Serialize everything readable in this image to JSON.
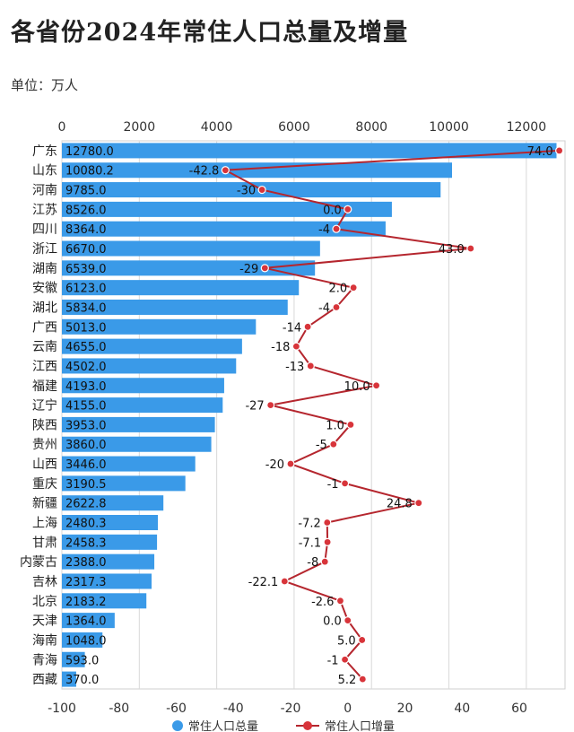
{
  "chart_data": {
    "type": "bar+line",
    "title": "各省份2024年常住人口总量及增量",
    "unit_label": "单位：万人",
    "categories": [
      "广东",
      "山东",
      "河南",
      "江苏",
      "四川",
      "浙江",
      "湖南",
      "安徽",
      "湖北",
      "广西",
      "云南",
      "江西",
      "福建",
      "辽宁",
      "陕西",
      "贵州",
      "山西",
      "重庆",
      "新疆",
      "上海",
      "甘肃",
      "内蒙古",
      "吉林",
      "北京",
      "天津",
      "海南",
      "青海",
      "西藏"
    ],
    "series": [
      {
        "name": "常住人口总量",
        "axis": "top",
        "type": "bar",
        "values": [
          12780.0,
          10080.2,
          9785.0,
          8526.0,
          8364.0,
          6670.0,
          6539.0,
          6123.0,
          5834.0,
          5013.0,
          4655.0,
          4502.0,
          4193.0,
          4155.0,
          3953.0,
          3860.0,
          3446.0,
          3190.5,
          2622.8,
          2480.3,
          2458.3,
          2388.0,
          2317.3,
          2183.2,
          1364.0,
          1048.0,
          593.0,
          370.0
        ],
        "labels": [
          "12780.0",
          "10080.2",
          "9785.0",
          "8526.0",
          "8364.0",
          "6670.0",
          "6539.0",
          "6123.0",
          "5834.0",
          "5013.0",
          "4655.0",
          "4502.0",
          "4193.0",
          "4155.0",
          "3953.0",
          "3860.0",
          "3446.0",
          "3190.5",
          "2622.8",
          "2480.3",
          "2458.3",
          "2388.0",
          "2317.3",
          "2183.2",
          "1364.0",
          "1048.0",
          "593.0",
          "370.0"
        ]
      },
      {
        "name": "常住人口增量",
        "axis": "bottom",
        "type": "line",
        "values": [
          74.0,
          -42.8,
          -30,
          0.0,
          -4,
          43.0,
          -29,
          2.0,
          -4,
          -14,
          -18,
          -13,
          10.0,
          -27,
          1.0,
          -5,
          -20,
          -1,
          24.8,
          -7.2,
          -7.1,
          -8,
          -22.1,
          -2.6,
          0.0,
          5.0,
          -1,
          5.2
        ],
        "labels": [
          "74.0",
          "-42.8",
          "-30",
          "0.0",
          "-4",
          "43.0",
          "-29",
          "2.0",
          "-4",
          "-14",
          "-18",
          "-13",
          "10.0",
          "-27",
          "1.0",
          "-5",
          "-20",
          "-1",
          "24.8",
          "-7.2",
          "-7.1",
          "-8",
          "-22.1",
          "-2.6",
          "0.0",
          "5.0",
          "-1",
          "5.2"
        ]
      }
    ],
    "x_top": {
      "range": [
        0,
        13000
      ],
      "ticks": [
        0,
        2000,
        4000,
        6000,
        8000,
        10000,
        12000
      ]
    },
    "x_bottom": {
      "range": [
        -100,
        76
      ],
      "ticks": [
        -100,
        -80,
        -60,
        -40,
        -20,
        0,
        20,
        40,
        60
      ]
    },
    "colors": {
      "bar": "#3a9ae8",
      "line": "#b5262e",
      "marker": "#d8343a",
      "grid": "#d9d9d9"
    },
    "legend": {
      "position": "bottom",
      "items": [
        "常住人口总量",
        "常住人口增量"
      ]
    }
  }
}
